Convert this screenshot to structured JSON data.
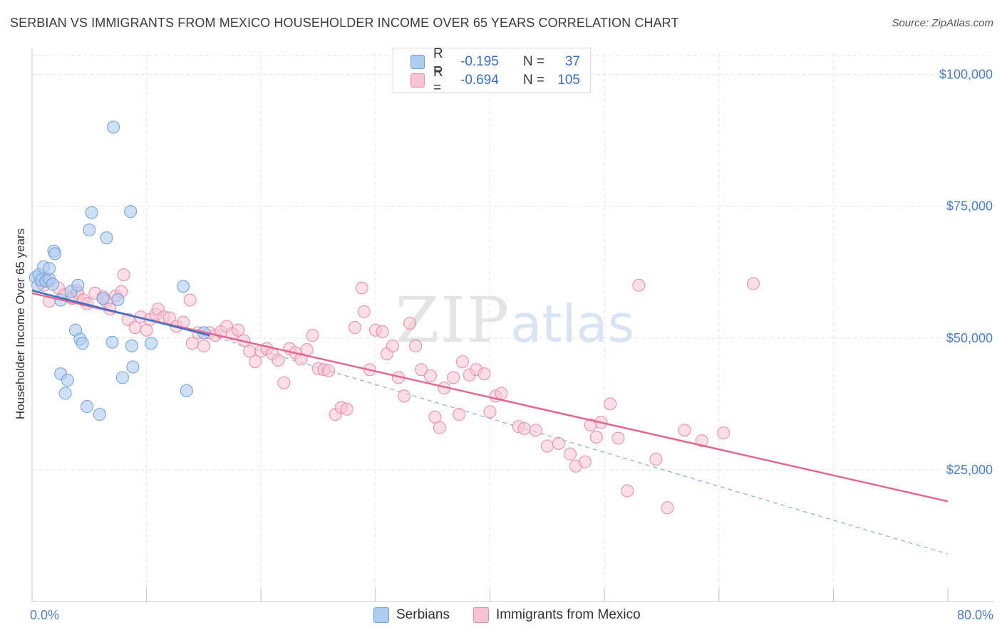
{
  "header": {
    "title": "SERBIAN VS IMMIGRANTS FROM MEXICO HOUSEHOLDER INCOME OVER 65 YEARS CORRELATION CHART",
    "source": "Source: ZipAtlas.com"
  },
  "watermark": {
    "zip": "ZIP",
    "atlas": "atlas"
  },
  "legend": {
    "serbians": {
      "r_label": "R =",
      "r_value": "-0.195",
      "n_label": "N =",
      "n_value": "37"
    },
    "mexico": {
      "r_label": "R =",
      "r_value": "-0.694",
      "n_label": "N =",
      "n_value": "105"
    }
  },
  "bottom_legend": {
    "serbians": "Serbians",
    "mexico": "Immigrants from Mexico"
  },
  "colors": {
    "serbians_fill": "#aecbf0",
    "serbians_stroke": "#6f9fd8",
    "serbians_line": "#3a72c8",
    "mexico_fill": "#f7c3d2",
    "mexico_stroke": "#e88aa6",
    "mexico_line": "#e06890",
    "grid": "#e3e3e3",
    "tick_text": "#4a7fc8"
  },
  "chart_data": {
    "type": "scatter",
    "title": "SERBIAN VS IMMIGRANTS FROM MEXICO HOUSEHOLDER INCOME OVER 65 YEARS CORRELATION CHART",
    "xlabel": "",
    "ylabel": "Householder Income Over 65 years",
    "xlim": [
      0,
      80
    ],
    "ylim": [
      0,
      104000
    ],
    "x_tick_labels": {
      "left": "0.0%",
      "right": "80.0%"
    },
    "y_ticks": [
      {
        "value": 25000,
        "label": "$25,000"
      },
      {
        "value": 50000,
        "label": "$50,000"
      },
      {
        "value": 75000,
        "label": "$75,000"
      },
      {
        "value": 100000,
        "label": "$100,000"
      }
    ],
    "grid": true,
    "series": [
      {
        "name": "Serbians",
        "r": -0.195,
        "n": 37,
        "trend": {
          "x0": 0,
          "y0": 59000,
          "x1": 15.5,
          "y1": 50500
        },
        "trend_extension": {
          "x0": 15.5,
          "y0": 50500,
          "x1": 80,
          "y1": 9000
        },
        "points": [
          [
            0.3,
            61500
          ],
          [
            0.5,
            60000
          ],
          [
            0.6,
            62000
          ],
          [
            0.8,
            61000
          ],
          [
            1.0,
            63500
          ],
          [
            1.2,
            60800
          ],
          [
            1.5,
            61200
          ],
          [
            1.5,
            63200
          ],
          [
            1.8,
            60200
          ],
          [
            1.9,
            66500
          ],
          [
            2.0,
            66000
          ],
          [
            2.5,
            57200
          ],
          [
            2.5,
            43200
          ],
          [
            2.9,
            39500
          ],
          [
            3.1,
            42000
          ],
          [
            3.4,
            58800
          ],
          [
            3.8,
            51500
          ],
          [
            4.0,
            60000
          ],
          [
            4.2,
            49800
          ],
          [
            4.4,
            49000
          ],
          [
            4.8,
            37000
          ],
          [
            5.0,
            70500
          ],
          [
            5.2,
            73800
          ],
          [
            5.9,
            35500
          ],
          [
            6.2,
            57500
          ],
          [
            6.5,
            69000
          ],
          [
            7.0,
            49200
          ],
          [
            7.1,
            90000
          ],
          [
            7.5,
            57300
          ],
          [
            7.9,
            42500
          ],
          [
            8.6,
            74000
          ],
          [
            8.7,
            48500
          ],
          [
            8.8,
            44500
          ],
          [
            10.4,
            49000
          ],
          [
            13.2,
            59800
          ],
          [
            13.5,
            40000
          ],
          [
            15.0,
            51000
          ]
        ]
      },
      {
        "name": "Immigrants from Mexico",
        "r": -0.694,
        "n": 105,
        "trend": {
          "x0": 0,
          "y0": 58500,
          "x1": 80,
          "y1": 19000
        },
        "points": [
          [
            0.8,
            60500
          ],
          [
            1.0,
            60000
          ],
          [
            1.4,
            60800
          ],
          [
            1.5,
            57000
          ],
          [
            2.3,
            59500
          ],
          [
            2.8,
            58200
          ],
          [
            3.5,
            57500
          ],
          [
            3.9,
            59000
          ],
          [
            4.0,
            58500
          ],
          [
            4.5,
            57200
          ],
          [
            4.8,
            56500
          ],
          [
            5.5,
            58500
          ],
          [
            6.2,
            57800
          ],
          [
            6.5,
            57000
          ],
          [
            6.8,
            55500
          ],
          [
            7.3,
            58000
          ],
          [
            7.8,
            58800
          ],
          [
            8.0,
            62000
          ],
          [
            8.4,
            53500
          ],
          [
            9.0,
            52000
          ],
          [
            9.5,
            54000
          ],
          [
            10.0,
            51500
          ],
          [
            10.3,
            53500
          ],
          [
            10.8,
            54500
          ],
          [
            11.0,
            55500
          ],
          [
            11.5,
            54000
          ],
          [
            12.0,
            53800
          ],
          [
            12.6,
            52200
          ],
          [
            13.2,
            53000
          ],
          [
            13.8,
            57200
          ],
          [
            14.0,
            49000
          ],
          [
            14.5,
            51000
          ],
          [
            15.0,
            48500
          ],
          [
            15.5,
            51000
          ],
          [
            16.0,
            50500
          ],
          [
            16.5,
            51200
          ],
          [
            17.0,
            52200
          ],
          [
            17.5,
            50800
          ],
          [
            18.0,
            51500
          ],
          [
            18.5,
            49500
          ],
          [
            19.0,
            47500
          ],
          [
            19.5,
            45500
          ],
          [
            20.0,
            47500
          ],
          [
            20.5,
            48000
          ],
          [
            21.0,
            47000
          ],
          [
            21.5,
            45800
          ],
          [
            22.0,
            41500
          ],
          [
            22.5,
            48000
          ],
          [
            23.0,
            47200
          ],
          [
            23.5,
            46000
          ],
          [
            24.0,
            47800
          ],
          [
            24.5,
            50500
          ],
          [
            25.0,
            44200
          ],
          [
            25.5,
            44000
          ],
          [
            25.9,
            43800
          ],
          [
            26.5,
            35500
          ],
          [
            27.0,
            36800
          ],
          [
            27.5,
            36500
          ],
          [
            28.2,
            52000
          ],
          [
            28.8,
            59500
          ],
          [
            29.0,
            55000
          ],
          [
            29.5,
            44000
          ],
          [
            30.0,
            51500
          ],
          [
            30.6,
            51200
          ],
          [
            31.0,
            47000
          ],
          [
            31.5,
            48500
          ],
          [
            32.0,
            42500
          ],
          [
            32.5,
            39000
          ],
          [
            33.0,
            52800
          ],
          [
            33.5,
            48500
          ],
          [
            34.0,
            44000
          ],
          [
            34.8,
            42800
          ],
          [
            35.2,
            35000
          ],
          [
            35.6,
            33000
          ],
          [
            36.0,
            40500
          ],
          [
            36.8,
            42500
          ],
          [
            37.3,
            35500
          ],
          [
            37.6,
            45500
          ],
          [
            38.2,
            43000
          ],
          [
            38.8,
            44000
          ],
          [
            39.5,
            43200
          ],
          [
            40.0,
            36000
          ],
          [
            40.5,
            39000
          ],
          [
            41.0,
            39500
          ],
          [
            42.5,
            33200
          ],
          [
            43.0,
            32800
          ],
          [
            44.0,
            32500
          ],
          [
            45.0,
            29500
          ],
          [
            46.0,
            30000
          ],
          [
            47.0,
            28000
          ],
          [
            47.5,
            25700
          ],
          [
            48.3,
            26500
          ],
          [
            48.8,
            33500
          ],
          [
            49.3,
            31200
          ],
          [
            49.7,
            34000
          ],
          [
            50.5,
            37500
          ],
          [
            51.2,
            31000
          ],
          [
            52.0,
            21000
          ],
          [
            53.0,
            60000
          ],
          [
            54.5,
            27000
          ],
          [
            55.5,
            17800
          ],
          [
            57.0,
            32500
          ],
          [
            58.5,
            30500
          ],
          [
            60.4,
            32000
          ],
          [
            63.0,
            60300
          ]
        ]
      }
    ]
  }
}
